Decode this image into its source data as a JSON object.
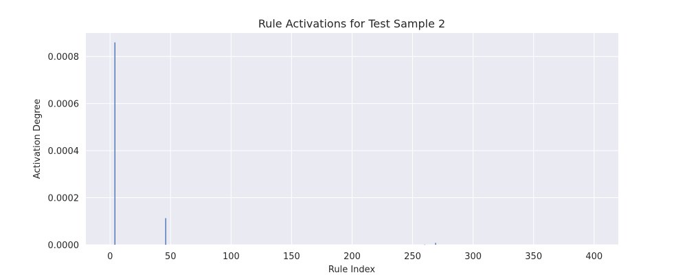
{
  "chart_data": {
    "type": "bar",
    "title": "Rule Activations for Test Sample 2",
    "xlabel": "Rule Index",
    "ylabel": "Activation Degree",
    "xlim": [
      -20,
      420
    ],
    "ylim": [
      0,
      0.0009
    ],
    "xticks": [
      0,
      50,
      100,
      150,
      200,
      250,
      300,
      350,
      400
    ],
    "xtick_labels": [
      "0",
      "50",
      "100",
      "150",
      "200",
      "250",
      "300",
      "350",
      "400"
    ],
    "yticks": [
      0,
      0.0002,
      0.0004,
      0.0006,
      0.0008
    ],
    "ytick_labels": [
      "0.0000",
      "0.0002",
      "0.0004",
      "0.0006",
      "0.0008"
    ],
    "grid": true,
    "bar_color": "#4c72b0",
    "x": [
      4,
      46,
      260,
      269
    ],
    "values": [
      0.00086,
      0.000113,
      1e-06,
      8e-06
    ]
  }
}
